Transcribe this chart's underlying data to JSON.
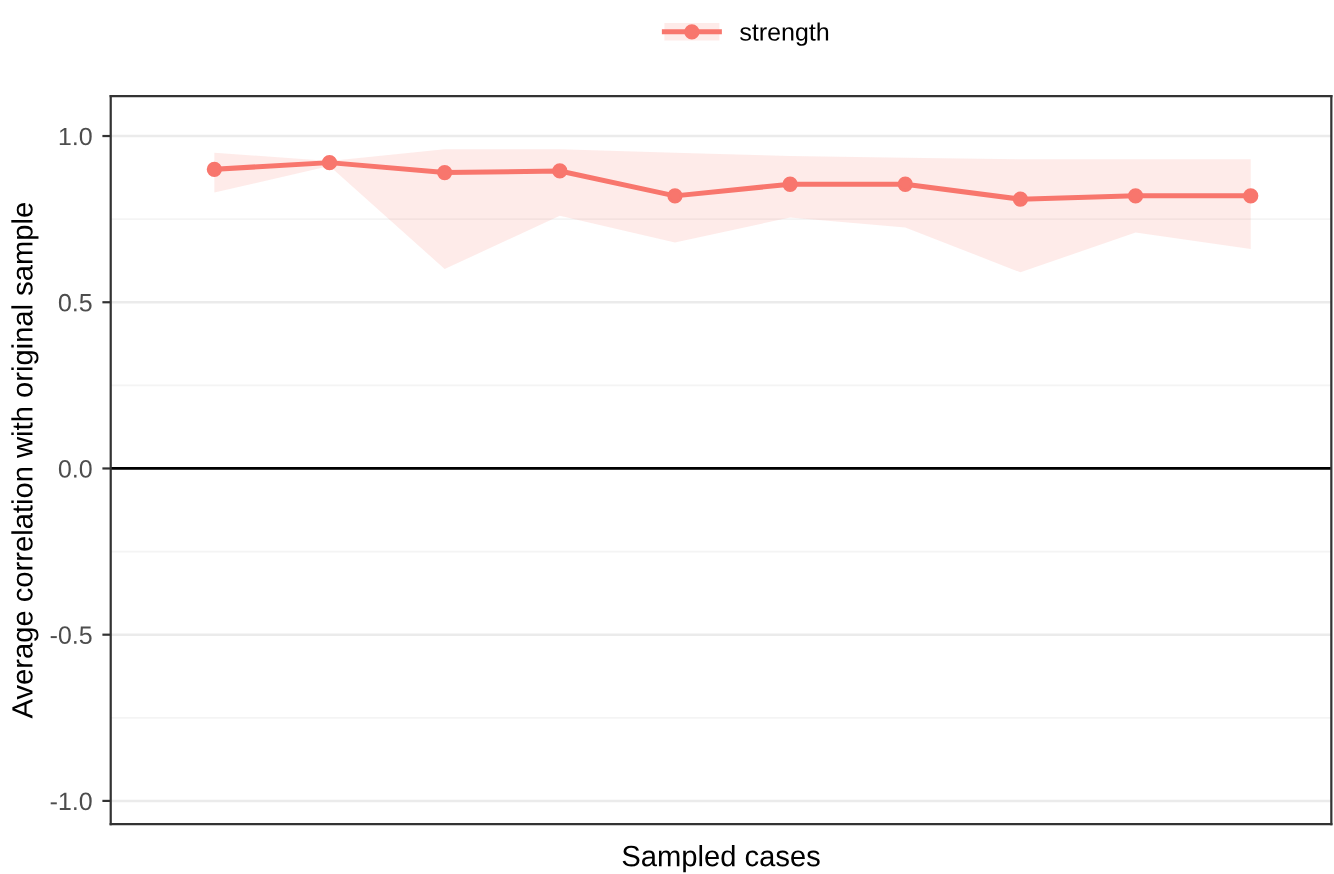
{
  "chart_data": {
    "type": "line",
    "xlabel": "Sampled cases",
    "ylabel": "Average correlation with original sample",
    "categories": [
      null,
      null,
      null,
      null,
      null,
      null,
      null,
      null,
      null,
      null
    ],
    "series": [
      {
        "name": "strength",
        "color": "#f8766d",
        "values": [
          0.9,
          0.92,
          0.89,
          0.895,
          0.82,
          0.855,
          0.855,
          0.81,
          0.82,
          0.82
        ],
        "lower": [
          0.83,
          0.91,
          0.6,
          0.76,
          0.68,
          0.755,
          0.725,
          0.59,
          0.71,
          0.66
        ],
        "upper": [
          0.95,
          0.925,
          0.96,
          0.96,
          0.95,
          0.94,
          0.935,
          0.93,
          0.93,
          0.93
        ]
      }
    ],
    "ylim": [
      -1.07,
      1.12
    ],
    "yticks": [
      {
        "value": -1.0,
        "label": "-1.0"
      },
      {
        "value": -0.75,
        "label": null
      },
      {
        "value": -0.5,
        "label": "-0.5"
      },
      {
        "value": -0.25,
        "label": null
      },
      {
        "value": 0.0,
        "label": "0.0"
      },
      {
        "value": 0.25,
        "label": null
      },
      {
        "value": 0.5,
        "label": "0.5"
      },
      {
        "value": 0.75,
        "label": null
      },
      {
        "value": 1.0,
        "label": "1.0"
      }
    ],
    "ref_lines": [
      {
        "axis": "y",
        "value": 0,
        "color": "#000000"
      }
    ],
    "grid": "y",
    "legend": "top",
    "marker": "circle",
    "line_style": "solid"
  }
}
